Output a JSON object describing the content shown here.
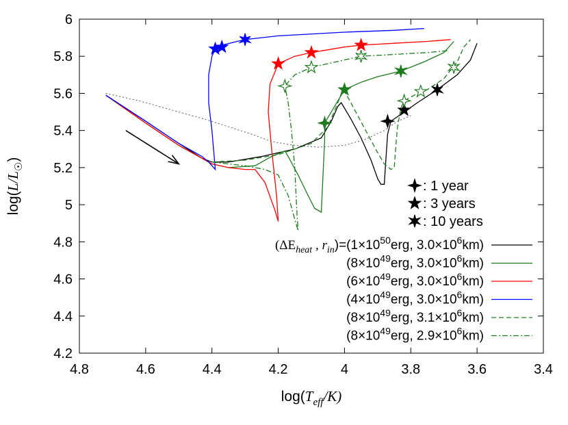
{
  "chart_data": {
    "type": "line",
    "title": "",
    "xlabel": "log(T_eff/K)",
    "ylabel": "log(L/L_sun)",
    "xlim": [
      4.8,
      3.4
    ],
    "ylim": [
      4.2,
      6.0
    ],
    "x_reversed": true,
    "grid": false,
    "legend_position": "bottom-right",
    "x_ticks": [
      "4.8",
      "4.6",
      "4.4",
      "4.2",
      "4",
      "3.8",
      "3.6",
      "3.4"
    ],
    "y_ticks": [
      "4.2",
      "4.4",
      "4.6",
      "4.8",
      "5",
      "5.2",
      "5.4",
      "5.6",
      "5.8",
      "6"
    ],
    "series": [
      {
        "name": "(ΔE_heat , r_in)=(1×10^50erg, 3.0×10^6km)",
        "color": "#000000",
        "dash": "solid",
        "points": [
          [
            4.72,
            5.59
          ],
          [
            4.6,
            5.45
          ],
          [
            4.5,
            5.33
          ],
          [
            4.43,
            5.25
          ],
          [
            4.4,
            5.23
          ],
          [
            4.35,
            5.23
          ],
          [
            4.25,
            5.26
          ],
          [
            4.15,
            5.3
          ],
          [
            4.07,
            5.36
          ],
          [
            4.04,
            5.45
          ],
          [
            4.02,
            5.53
          ],
          [
            4.01,
            5.55
          ],
          [
            3.98,
            5.46
          ],
          [
            3.95,
            5.36
          ],
          [
            3.92,
            5.24
          ],
          [
            3.9,
            5.14
          ],
          [
            3.89,
            5.11
          ],
          [
            3.88,
            5.11
          ],
          [
            3.875,
            5.25
          ],
          [
            3.87,
            5.38
          ],
          [
            3.86,
            5.45
          ],
          [
            3.82,
            5.5
          ],
          [
            3.78,
            5.55
          ],
          [
            3.72,
            5.62
          ],
          [
            3.66,
            5.7
          ],
          [
            3.62,
            5.78
          ],
          [
            3.6,
            5.87
          ]
        ],
        "markers": [
          {
            "kind": "1 year",
            "point": [
              3.87,
              5.45
            ]
          },
          {
            "kind": "3 years",
            "point": [
              3.82,
              5.51
            ]
          },
          {
            "kind": "10 years",
            "point": [
              3.72,
              5.62
            ]
          }
        ]
      },
      {
        "name": "(8×10^49erg, 3.0×10^6km)",
        "color": "#1f7a1f",
        "dash": "solid",
        "points": [
          [
            4.72,
            5.59
          ],
          [
            4.6,
            5.44
          ],
          [
            4.5,
            5.32
          ],
          [
            4.43,
            5.25
          ],
          [
            4.4,
            5.22
          ],
          [
            4.35,
            5.2
          ],
          [
            4.27,
            5.21
          ],
          [
            4.22,
            5.26
          ],
          [
            4.18,
            5.29
          ],
          [
            4.17,
            5.26
          ],
          [
            4.14,
            5.16
          ],
          [
            4.11,
            5.05
          ],
          [
            4.09,
            4.98
          ],
          [
            4.07,
            4.96
          ],
          [
            4.065,
            5.15
          ],
          [
            4.06,
            5.35
          ],
          [
            4.06,
            5.44
          ],
          [
            4.03,
            5.53
          ],
          [
            4.0,
            5.62
          ],
          [
            3.95,
            5.66
          ],
          [
            3.9,
            5.69
          ],
          [
            3.83,
            5.72
          ],
          [
            3.76,
            5.77
          ],
          [
            3.7,
            5.82
          ],
          [
            3.67,
            5.88
          ]
        ],
        "markers": [
          {
            "kind": "1 year",
            "point": [
              4.06,
              5.44
            ]
          },
          {
            "kind": "3 years",
            "point": [
              4.0,
              5.62
            ]
          },
          {
            "kind": "10 years",
            "point": [
              3.83,
              5.72
            ]
          }
        ]
      },
      {
        "name": "(6×10^49erg, 3.0×10^6km)",
        "color": "#ff0000",
        "dash": "solid",
        "points": [
          [
            4.72,
            5.59
          ],
          [
            4.6,
            5.44
          ],
          [
            4.5,
            5.32
          ],
          [
            4.43,
            5.25
          ],
          [
            4.4,
            5.22
          ],
          [
            4.35,
            5.2
          ],
          [
            4.3,
            5.19
          ],
          [
            4.27,
            5.19
          ],
          [
            4.24,
            5.12
          ],
          [
            4.21,
            4.97
          ],
          [
            4.2,
            4.91
          ],
          [
            4.205,
            5.05
          ],
          [
            4.22,
            5.3
          ],
          [
            4.23,
            5.5
          ],
          [
            4.225,
            5.65
          ],
          [
            4.2,
            5.76
          ],
          [
            4.15,
            5.8
          ],
          [
            4.1,
            5.82
          ],
          [
            4.0,
            5.85
          ],
          [
            3.95,
            5.86
          ],
          [
            3.85,
            5.87
          ],
          [
            3.75,
            5.88
          ],
          [
            3.68,
            5.89
          ]
        ],
        "markers": [
          {
            "kind": "3 years",
            "point": [
              4.2,
              5.76
            ]
          },
          {
            "kind": "3 years",
            "point": [
              4.1,
              5.82
            ]
          },
          {
            "kind": "3 years",
            "point": [
              3.95,
              5.86
            ]
          }
        ]
      },
      {
        "name": "(4×10^49erg, 3.0×10^6km)",
        "color": "#0000ff",
        "dash": "solid",
        "points": [
          [
            4.72,
            5.59
          ],
          [
            4.6,
            5.45
          ],
          [
            4.5,
            5.33
          ],
          [
            4.43,
            5.26
          ],
          [
            4.41,
            5.23
          ],
          [
            4.39,
            5.19
          ],
          [
            4.4,
            5.4
          ],
          [
            4.41,
            5.55
          ],
          [
            4.41,
            5.7
          ],
          [
            4.4,
            5.8
          ],
          [
            4.39,
            5.84
          ],
          [
            4.37,
            5.86
          ],
          [
            4.3,
            5.89
          ],
          [
            4.2,
            5.91
          ],
          [
            4.0,
            5.93
          ],
          [
            3.85,
            5.94
          ],
          [
            3.76,
            5.95
          ]
        ],
        "markers": [
          {
            "kind": "3 years",
            "point": [
              4.39,
              5.84
            ]
          },
          {
            "kind": "3 years",
            "point": [
              4.37,
              5.85
            ]
          },
          {
            "kind": "10 years",
            "point": [
              4.3,
              5.89
            ]
          }
        ]
      },
      {
        "name": "(8×10^49erg, 3.1×10^6km)",
        "color": "#1f7a1f",
        "dash": "dashed",
        "points": [
          [
            4.4,
            5.23
          ],
          [
            4.3,
            5.24
          ],
          [
            4.2,
            5.27
          ],
          [
            4.1,
            5.33
          ],
          [
            4.05,
            5.42
          ],
          [
            4.02,
            5.55
          ],
          [
            4.005,
            5.62
          ],
          [
            3.99,
            5.58
          ],
          [
            3.96,
            5.48
          ],
          [
            3.93,
            5.38
          ],
          [
            3.9,
            5.28
          ],
          [
            3.88,
            5.22
          ],
          [
            3.86,
            5.19
          ],
          [
            3.85,
            5.2
          ],
          [
            3.845,
            5.32
          ],
          [
            3.84,
            5.42
          ],
          [
            3.83,
            5.52
          ],
          [
            3.82,
            5.56
          ],
          [
            3.78,
            5.6
          ],
          [
            3.75,
            5.62
          ],
          [
            3.7,
            5.68
          ],
          [
            3.66,
            5.77
          ],
          [
            3.64,
            5.85
          ],
          [
            3.62,
            5.89
          ]
        ],
        "markers": [
          {
            "kind": "1 year",
            "point": [
              3.82,
              5.56
            ]
          },
          {
            "kind": "3 years",
            "point": [
              3.77,
              5.61
            ]
          },
          {
            "kind": "10 years",
            "point": [
              3.67,
              5.74
            ]
          }
        ]
      },
      {
        "name": "(8×10^49erg, 2.9×10^6km)",
        "color": "#1f7a1f",
        "dash": "dashdot",
        "points": [
          [
            4.4,
            5.23
          ],
          [
            4.3,
            5.21
          ],
          [
            4.24,
            5.19
          ],
          [
            4.2,
            5.16
          ],
          [
            4.17,
            5.05
          ],
          [
            4.15,
            4.92
          ],
          [
            4.14,
            4.86
          ],
          [
            4.145,
            5.0
          ],
          [
            4.15,
            5.2
          ],
          [
            4.16,
            5.4
          ],
          [
            4.17,
            5.55
          ],
          [
            4.18,
            5.64
          ],
          [
            4.15,
            5.7
          ],
          [
            4.1,
            5.74
          ],
          [
            4.0,
            5.78
          ],
          [
            3.95,
            5.8
          ],
          [
            3.85,
            5.81
          ],
          [
            3.75,
            5.82
          ],
          [
            3.69,
            5.83
          ]
        ],
        "markers": [
          {
            "kind": "1 year",
            "point": [
              4.18,
              5.64
            ]
          },
          {
            "kind": "3 years",
            "point": [
              4.1,
              5.74
            ]
          },
          {
            "kind": "10 years",
            "point": [
              3.95,
              5.8
            ]
          }
        ]
      },
      {
        "name": "",
        "color": "#555555",
        "dash": "dotted",
        "points": [
          [
            4.72,
            5.6
          ],
          [
            4.62,
            5.56
          ],
          [
            4.5,
            5.5
          ],
          [
            4.42,
            5.46
          ],
          [
            4.35,
            5.42
          ],
          [
            4.28,
            5.38
          ],
          [
            4.22,
            5.34
          ],
          [
            4.15,
            5.32
          ],
          [
            4.08,
            5.31
          ],
          [
            4.0,
            5.32
          ],
          [
            3.94,
            5.35
          ],
          [
            3.88,
            5.4
          ],
          [
            3.84,
            5.45
          ],
          [
            3.8,
            5.48
          ]
        ],
        "markers": []
      }
    ],
    "annotation_arrow": {
      "from": [
        4.66,
        5.4
      ],
      "to": [
        4.5,
        5.22
      ]
    },
    "marker_legend": [
      {
        "symbol": "4-point star",
        "label": ": 1 year"
      },
      {
        "symbol": "5-point star",
        "label": ": 3 years"
      },
      {
        "symbol": "6-point star",
        "label": ": 10 years"
      }
    ]
  },
  "axis_labels": {
    "x_main": "log(",
    "x_var": "T",
    "x_sub": "eff",
    "x_tail": "/K)",
    "y_main": "log(",
    "y_var": "L/L",
    "y_sub": "☉",
    "y_tail": ")"
  },
  "legend_entries": [
    {
      "pre": "(ΔE",
      "sub1": "heat",
      "mid": " , r",
      "sub2": "in",
      "post": ")=(1×10",
      "exp1": "50",
      "post2": "erg, 3.0×10",
      "exp2": "6",
      "end": "km)"
    },
    {
      "pre": "",
      "sub1": "",
      "mid": "",
      "sub2": "",
      "post": "(8×10",
      "exp1": "49",
      "post2": "erg, 3.0×10",
      "exp2": "6",
      "end": "km)"
    },
    {
      "pre": "",
      "sub1": "",
      "mid": "",
      "sub2": "",
      "post": "(6×10",
      "exp1": "49",
      "post2": "erg, 3.0×10",
      "exp2": "6",
      "end": "km)"
    },
    {
      "pre": "",
      "sub1": "",
      "mid": "",
      "sub2": "",
      "post": "(4×10",
      "exp1": "49",
      "post2": "erg, 3.0×10",
      "exp2": "6",
      "end": "km)"
    },
    {
      "pre": "",
      "sub1": "",
      "mid": "",
      "sub2": "",
      "post": "(8×10",
      "exp1": "49",
      "post2": "erg, 3.1×10",
      "exp2": "6",
      "end": "km)"
    },
    {
      "pre": "",
      "sub1": "",
      "mid": "",
      "sub2": "",
      "post": "(8×10",
      "exp1": "49",
      "post2": "erg, 2.9×10",
      "exp2": "6",
      "end": "km)"
    }
  ]
}
